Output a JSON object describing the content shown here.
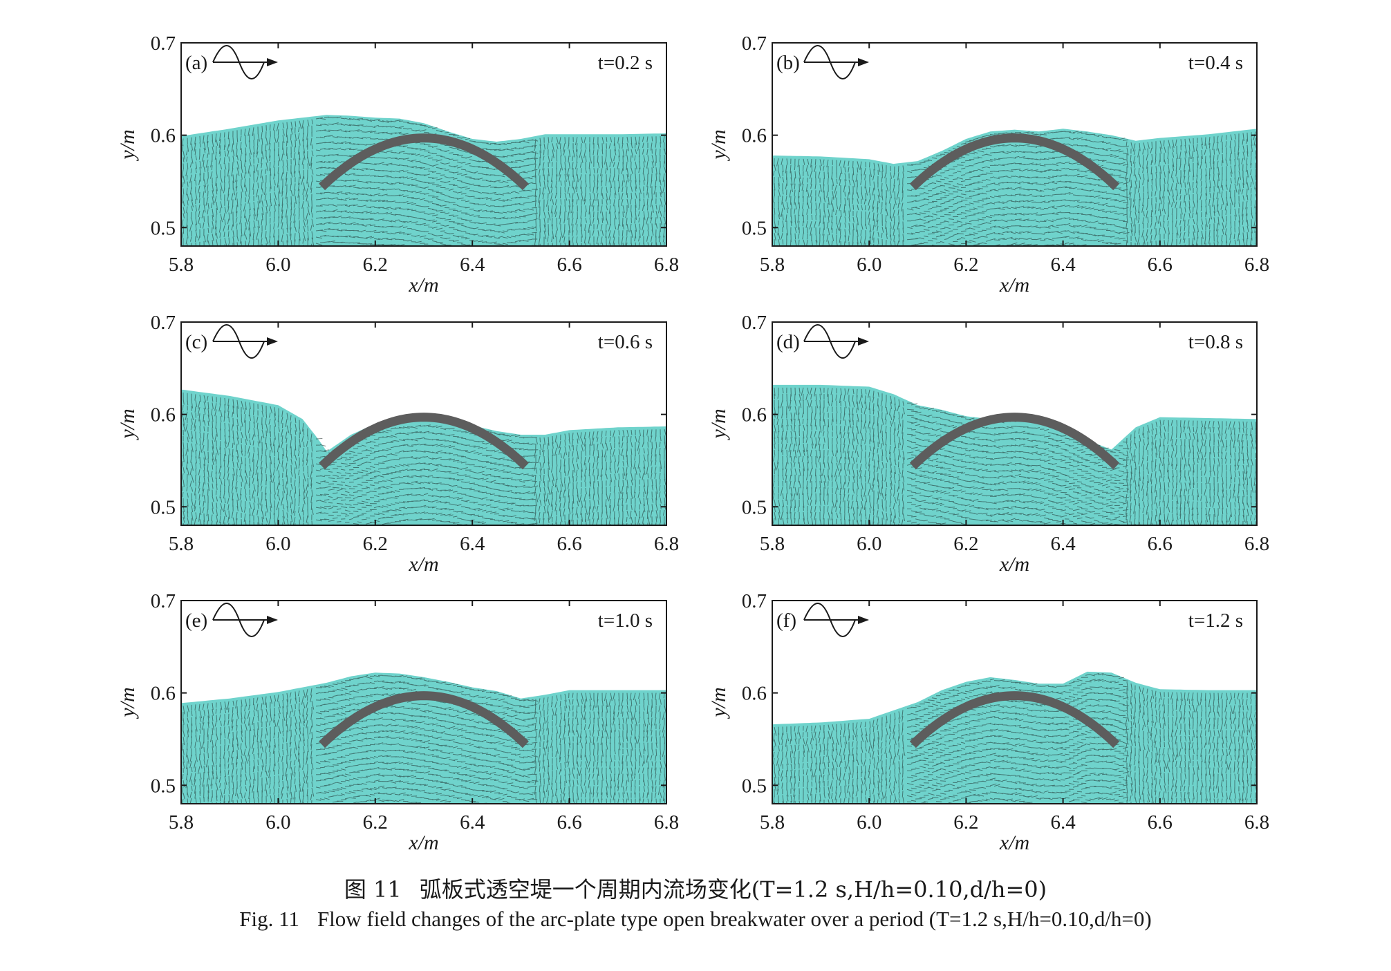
{
  "caption": {
    "cn_label": "图 11",
    "cn_text": "弧板式透空堤一个周期内流场变化(T=1.2 s,H/h=0.10,d/h=0)",
    "en_label": "Fig. 11",
    "en_text": "Flow field changes of the arc-plate type open breakwater over a period (T=1.2 s,H/h=0.10,d/h=0)"
  },
  "colors": {
    "water": "#6fd3cc",
    "vector": "#1e2b2a",
    "plate": "#5d5d5d",
    "axis": "#1a1a1a"
  },
  "chart_data": [
    {
      "type": "area",
      "panel": "(a)",
      "time_label": "t=0.2 s",
      "xlabel": "x/m",
      "ylabel": "y/m",
      "xlim": [
        5.8,
        6.8
      ],
      "ylim": [
        0.48,
        0.7
      ],
      "xticks": [
        "5.8",
        "6.0",
        "6.2",
        "6.4",
        "6.6",
        "6.8"
      ],
      "yticks": [
        "0.5",
        "0.6",
        "0.7"
      ],
      "free_surface": {
        "x": [
          5.8,
          5.9,
          6.0,
          6.1,
          6.15,
          6.2,
          6.25,
          6.3,
          6.35,
          6.4,
          6.45,
          6.5,
          6.55,
          6.6,
          6.7,
          6.8
        ],
        "y": [
          0.599,
          0.607,
          0.616,
          0.622,
          0.621,
          0.619,
          0.618,
          0.613,
          0.604,
          0.596,
          0.593,
          0.596,
          0.601,
          0.601,
          0.601,
          0.602
        ]
      },
      "arc_plate": {
        "x_start": 6.09,
        "x_end": 6.51,
        "y_crown": 0.597,
        "y_ends": 0.544
      }
    },
    {
      "type": "area",
      "panel": "(b)",
      "time_label": "t=0.4 s",
      "xlabel": "x/m",
      "ylabel": "y/m",
      "xlim": [
        5.8,
        6.8
      ],
      "ylim": [
        0.48,
        0.7
      ],
      "xticks": [
        "5.8",
        "6.0",
        "6.2",
        "6.4",
        "6.6",
        "6.8"
      ],
      "yticks": [
        "0.5",
        "0.6",
        "0.7"
      ],
      "free_surface": {
        "x": [
          5.8,
          5.9,
          6.0,
          6.05,
          6.1,
          6.15,
          6.2,
          6.25,
          6.3,
          6.35,
          6.4,
          6.45,
          6.5,
          6.55,
          6.6,
          6.7,
          6.8
        ],
        "y": [
          0.578,
          0.577,
          0.574,
          0.569,
          0.572,
          0.583,
          0.596,
          0.604,
          0.606,
          0.604,
          0.607,
          0.604,
          0.6,
          0.594,
          0.597,
          0.601,
          0.607
        ]
      },
      "arc_plate": {
        "x_start": 6.09,
        "x_end": 6.51,
        "y_crown": 0.597,
        "y_ends": 0.544
      }
    },
    {
      "type": "area",
      "panel": "(c)",
      "time_label": "t=0.6 s",
      "xlabel": "x/m",
      "ylabel": "y/m",
      "xlim": [
        5.8,
        6.8
      ],
      "ylim": [
        0.48,
        0.7
      ],
      "xticks": [
        "5.8",
        "6.0",
        "6.2",
        "6.4",
        "6.6",
        "6.8"
      ],
      "yticks": [
        "0.5",
        "0.6",
        "0.7"
      ],
      "free_surface": {
        "x": [
          5.8,
          5.9,
          5.95,
          6.0,
          6.05,
          6.08,
          6.1,
          6.15,
          6.2,
          6.25,
          6.3,
          6.35,
          6.4,
          6.45,
          6.5,
          6.55,
          6.6,
          6.7,
          6.8
        ],
        "y": [
          0.627,
          0.62,
          0.615,
          0.61,
          0.595,
          0.575,
          0.56,
          0.578,
          0.59,
          0.596,
          0.597,
          0.594,
          0.588,
          0.582,
          0.578,
          0.578,
          0.583,
          0.586,
          0.587
        ]
      },
      "arc_plate": {
        "x_start": 6.09,
        "x_end": 6.51,
        "y_crown": 0.597,
        "y_ends": 0.544
      }
    },
    {
      "type": "area",
      "panel": "(d)",
      "time_label": "t=0.8 s",
      "xlabel": "x/m",
      "ylabel": "y/m",
      "xlim": [
        5.8,
        6.8
      ],
      "ylim": [
        0.48,
        0.7
      ],
      "xticks": [
        "5.8",
        "6.0",
        "6.2",
        "6.4",
        "6.6",
        "6.8"
      ],
      "yticks": [
        "0.5",
        "0.6",
        "0.7"
      ],
      "free_surface": {
        "x": [
          5.8,
          5.9,
          6.0,
          6.05,
          6.1,
          6.15,
          6.2,
          6.25,
          6.3,
          6.35,
          6.4,
          6.45,
          6.5,
          6.55,
          6.6,
          6.7,
          6.8
        ],
        "y": [
          0.632,
          0.632,
          0.63,
          0.622,
          0.61,
          0.605,
          0.598,
          0.595,
          0.597,
          0.594,
          0.585,
          0.572,
          0.562,
          0.586,
          0.597,
          0.596,
          0.595
        ]
      },
      "arc_plate": {
        "x_start": 6.09,
        "x_end": 6.51,
        "y_crown": 0.597,
        "y_ends": 0.544
      }
    },
    {
      "type": "area",
      "panel": "(e)",
      "time_label": "t=1.0 s",
      "xlabel": "x/m",
      "ylabel": "y/m",
      "xlim": [
        5.8,
        6.8
      ],
      "ylim": [
        0.48,
        0.7
      ],
      "xticks": [
        "5.8",
        "6.0",
        "6.2",
        "6.4",
        "6.6",
        "6.8"
      ],
      "yticks": [
        "0.5",
        "0.6",
        "0.7"
      ],
      "free_surface": {
        "x": [
          5.8,
          5.9,
          6.0,
          6.1,
          6.15,
          6.2,
          6.25,
          6.3,
          6.35,
          6.4,
          6.45,
          6.5,
          6.55,
          6.6,
          6.7,
          6.8
        ],
        "y": [
          0.589,
          0.594,
          0.601,
          0.611,
          0.618,
          0.622,
          0.621,
          0.617,
          0.612,
          0.606,
          0.602,
          0.594,
          0.598,
          0.603,
          0.603,
          0.603
        ]
      },
      "arc_plate": {
        "x_start": 6.09,
        "x_end": 6.51,
        "y_crown": 0.597,
        "y_ends": 0.544
      }
    },
    {
      "type": "area",
      "panel": "(f)",
      "time_label": "t=1.2 s",
      "xlabel": "x/m",
      "ylabel": "y/m",
      "xlim": [
        5.8,
        6.8
      ],
      "ylim": [
        0.48,
        0.7
      ],
      "xticks": [
        "5.8",
        "6.0",
        "6.2",
        "6.4",
        "6.6",
        "6.8"
      ],
      "yticks": [
        "0.5",
        "0.6",
        "0.7"
      ],
      "free_surface": {
        "x": [
          5.8,
          5.9,
          6.0,
          6.1,
          6.15,
          6.2,
          6.25,
          6.3,
          6.35,
          6.4,
          6.45,
          6.5,
          6.55,
          6.6,
          6.7,
          6.8
        ],
        "y": [
          0.566,
          0.568,
          0.572,
          0.59,
          0.603,
          0.612,
          0.617,
          0.614,
          0.61,
          0.61,
          0.623,
          0.622,
          0.611,
          0.604,
          0.603,
          0.603
        ]
      },
      "arc_plate": {
        "x_start": 6.09,
        "x_end": 6.51,
        "y_crown": 0.597,
        "y_ends": 0.544
      }
    }
  ]
}
